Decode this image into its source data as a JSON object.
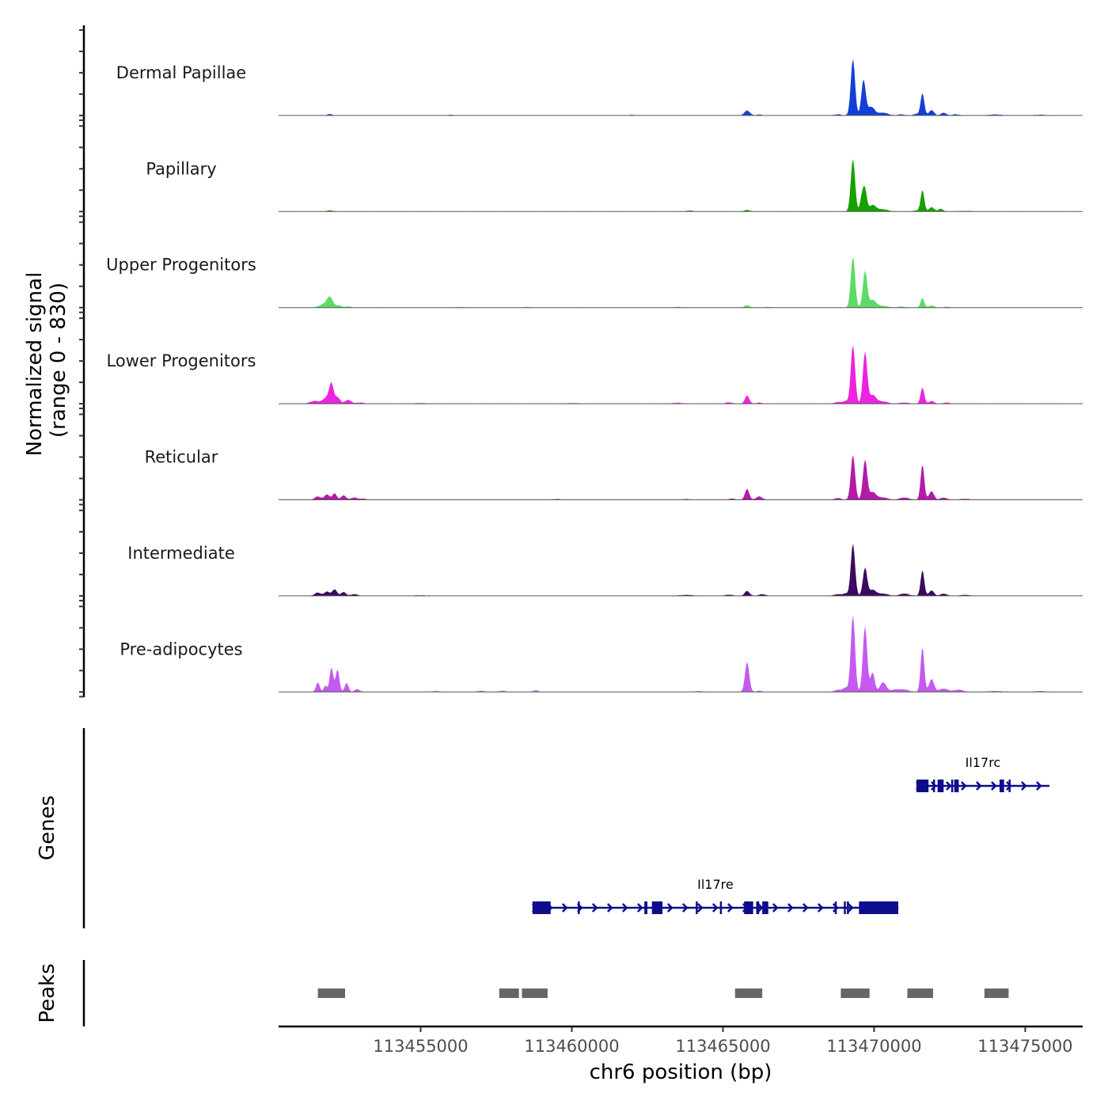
{
  "chart_data": {
    "type": "area",
    "chromosome": "chr6",
    "xlabel": "chr6 position (bp)",
    "ylabel": "Normalized signal\n(range 0 - 830)",
    "ylabel_lines": [
      "Normalized signal",
      "(range 0 - 830)"
    ],
    "ylim": [
      0,
      830
    ],
    "xlim": [
      113450300,
      113476900
    ],
    "x_ticks": [
      113455000,
      113460000,
      113465000,
      113470000,
      113475000
    ],
    "x_tick_labels": [
      "113455000",
      "113460000",
      "113465000",
      "113470000",
      "113475000"
    ],
    "grid": false,
    "tracks": [
      {
        "name": "Dermal Papillae",
        "color": "#1240d6",
        "peaks": [
          [
            113452000,
            12,
            80
          ],
          [
            113456000,
            5,
            80
          ],
          [
            113462000,
            5,
            80
          ],
          [
            113465800,
            45,
            90
          ],
          [
            113466200,
            8,
            80
          ],
          [
            113468800,
            10,
            100
          ],
          [
            113469300,
            530,
            70
          ],
          [
            113469650,
            330,
            70
          ],
          [
            113469900,
            80,
            120
          ],
          [
            113470300,
            25,
            150
          ],
          [
            113470900,
            10,
            100
          ],
          [
            113471400,
            15,
            80
          ],
          [
            113471600,
            210,
            60
          ],
          [
            113471900,
            50,
            80
          ],
          [
            113472300,
            25,
            80
          ],
          [
            113472700,
            10,
            100
          ],
          [
            113474000,
            8,
            200
          ],
          [
            113475500,
            6,
            150
          ]
        ]
      },
      {
        "name": "Papillary",
        "color": "#16a000",
        "peaks": [
          [
            113452000,
            10,
            100
          ],
          [
            113463900,
            10,
            80
          ],
          [
            113465800,
            15,
            80
          ],
          [
            113469300,
            490,
            70
          ],
          [
            113469600,
            140,
            60
          ],
          [
            113469700,
            190,
            60
          ],
          [
            113469950,
            60,
            120
          ],
          [
            113470300,
            20,
            150
          ],
          [
            113471400,
            10,
            80
          ],
          [
            113471600,
            200,
            60
          ],
          [
            113471900,
            40,
            80
          ],
          [
            113472200,
            25,
            80
          ],
          [
            113473000,
            5,
            200
          ]
        ]
      },
      {
        "name": "Upper Progenitors",
        "color": "#5ddb66",
        "peaks": [
          [
            113451800,
            30,
            150
          ],
          [
            113452000,
            90,
            100
          ],
          [
            113452300,
            20,
            80
          ],
          [
            113452600,
            10,
            100
          ],
          [
            113456300,
            6,
            80
          ],
          [
            113458500,
            6,
            80
          ],
          [
            113463500,
            6,
            100
          ],
          [
            113465800,
            22,
            80
          ],
          [
            113466500,
            6,
            80
          ],
          [
            113469300,
            480,
            70
          ],
          [
            113469700,
            340,
            70
          ],
          [
            113469950,
            70,
            120
          ],
          [
            113470300,
            15,
            150
          ],
          [
            113470900,
            10,
            100
          ],
          [
            113471600,
            90,
            60
          ],
          [
            113471900,
            20,
            80
          ],
          [
            113472400,
            8,
            80
          ]
        ]
      },
      {
        "name": "Lower Progenitors",
        "color": "#ee22e0",
        "peaks": [
          [
            113451500,
            25,
            150
          ],
          [
            113451900,
            60,
            120
          ],
          [
            113452050,
            170,
            70
          ],
          [
            113452250,
            60,
            80
          ],
          [
            113452600,
            35,
            100
          ],
          [
            113453000,
            10,
            120
          ],
          [
            113455000,
            5,
            200
          ],
          [
            113460000,
            5,
            200
          ],
          [
            113463500,
            8,
            150
          ],
          [
            113465200,
            12,
            100
          ],
          [
            113465800,
            75,
            70
          ],
          [
            113466200,
            10,
            80
          ],
          [
            113468800,
            15,
            100
          ],
          [
            113469050,
            25,
            80
          ],
          [
            113469300,
            550,
            70
          ],
          [
            113469700,
            480,
            70
          ],
          [
            113469950,
            80,
            120
          ],
          [
            113470300,
            20,
            150
          ],
          [
            113471000,
            10,
            150
          ],
          [
            113471600,
            150,
            60
          ],
          [
            113471900,
            25,
            80
          ],
          [
            113472400,
            10,
            100
          ]
        ]
      },
      {
        "name": "Reticular",
        "color": "#b31aa8",
        "peaks": [
          [
            113451600,
            30,
            100
          ],
          [
            113451900,
            50,
            80
          ],
          [
            113452150,
            60,
            70
          ],
          [
            113452450,
            40,
            80
          ],
          [
            113452800,
            20,
            100
          ],
          [
            113453100,
            10,
            100
          ],
          [
            113459500,
            6,
            150
          ],
          [
            113463800,
            6,
            100
          ],
          [
            113465300,
            10,
            100
          ],
          [
            113465800,
            100,
            70
          ],
          [
            113466200,
            30,
            100
          ],
          [
            113468800,
            15,
            100
          ],
          [
            113469300,
            420,
            70
          ],
          [
            113469700,
            370,
            70
          ],
          [
            113469950,
            70,
            120
          ],
          [
            113470300,
            20,
            150
          ],
          [
            113471000,
            20,
            150
          ],
          [
            113471600,
            330,
            60
          ],
          [
            113471900,
            80,
            80
          ],
          [
            113472300,
            20,
            100
          ],
          [
            113473000,
            8,
            150
          ]
        ]
      },
      {
        "name": "Intermediate",
        "color": "#3b0a5e",
        "peaks": [
          [
            113451600,
            30,
            100
          ],
          [
            113451900,
            40,
            80
          ],
          [
            113452150,
            60,
            80
          ],
          [
            113452450,
            35,
            80
          ],
          [
            113452800,
            15,
            100
          ],
          [
            113455000,
            4,
            200
          ],
          [
            113463800,
            8,
            200
          ],
          [
            113465200,
            10,
            120
          ],
          [
            113465800,
            45,
            80
          ],
          [
            113466300,
            15,
            100
          ],
          [
            113468800,
            15,
            120
          ],
          [
            113469050,
            20,
            80
          ],
          [
            113469300,
            490,
            70
          ],
          [
            113469700,
            260,
            70
          ],
          [
            113469950,
            55,
            120
          ],
          [
            113470300,
            20,
            150
          ],
          [
            113471000,
            20,
            150
          ],
          [
            113471600,
            240,
            60
          ],
          [
            113471900,
            50,
            80
          ],
          [
            113472300,
            20,
            100
          ],
          [
            113473000,
            8,
            150
          ]
        ]
      },
      {
        "name": "Pre-adipocytes",
        "color": "#c45af0",
        "peaks": [
          [
            113451600,
            90,
            60
          ],
          [
            113451850,
            60,
            50
          ],
          [
            113452050,
            230,
            60
          ],
          [
            113452250,
            210,
            60
          ],
          [
            113452550,
            85,
            60
          ],
          [
            113452900,
            25,
            80
          ],
          [
            113455500,
            8,
            100
          ],
          [
            113457000,
            10,
            100
          ],
          [
            113457700,
            10,
            100
          ],
          [
            113458800,
            15,
            80
          ],
          [
            113464200,
            8,
            100
          ],
          [
            113465800,
            280,
            70
          ],
          [
            113466200,
            10,
            80
          ],
          [
            113468800,
            20,
            100
          ],
          [
            113469050,
            40,
            80
          ],
          [
            113469300,
            720,
            70
          ],
          [
            113469700,
            620,
            70
          ],
          [
            113469950,
            180,
            70
          ],
          [
            113470300,
            90,
            100
          ],
          [
            113470700,
            20,
            150
          ],
          [
            113471000,
            20,
            150
          ],
          [
            113471600,
            420,
            60
          ],
          [
            113471900,
            120,
            80
          ],
          [
            113472300,
            30,
            150
          ],
          [
            113472800,
            20,
            150
          ],
          [
            113474000,
            8,
            200
          ],
          [
            113475500,
            8,
            150
          ]
        ]
      }
    ],
    "genes_panel": {
      "label": "Genes",
      "color": "#0d0d8c",
      "genes": [
        {
          "name": "Il17rc",
          "start": 113471400,
          "end": 113475800,
          "strand": "+",
          "exons": [
            [
              113471400,
              113471800
            ],
            [
              113471950,
              113472000
            ],
            [
              113472100,
              113472300
            ],
            [
              113472550,
              113472600
            ],
            [
              113472650,
              113472800
            ],
            [
              113474150,
              113474300
            ],
            [
              113474450,
              113474500
            ]
          ],
          "row": 1
        },
        {
          "name": "Il17re",
          "start": 113458700,
          "end": 113470800,
          "strand": "+",
          "exons": [
            [
              113458700,
              113459300
            ],
            [
              113460200,
              113460250
            ],
            [
              113462400,
              113462500
            ],
            [
              113462650,
              113463000
            ],
            [
              113464100,
              113464150
            ],
            [
              113464900,
              113464950
            ],
            [
              113465700,
              113466000
            ],
            [
              113466100,
              113466200
            ],
            [
              113466300,
              113466500
            ],
            [
              113468700,
              113468750
            ],
            [
              113469000,
              113469050
            ],
            [
              113469100,
              113469150
            ],
            [
              113469500,
              113470800
            ]
          ],
          "row": 2
        }
      ]
    },
    "peaks_panel": {
      "label": "Peaks",
      "color": "#666666",
      "regions": [
        [
          113451600,
          113452500
        ],
        [
          113457600,
          113458250
        ],
        [
          113458350,
          113459200
        ],
        [
          113465400,
          113466300
        ],
        [
          113468900,
          113469850
        ],
        [
          113471100,
          113471950
        ],
        [
          113473650,
          113474450
        ]
      ]
    }
  }
}
